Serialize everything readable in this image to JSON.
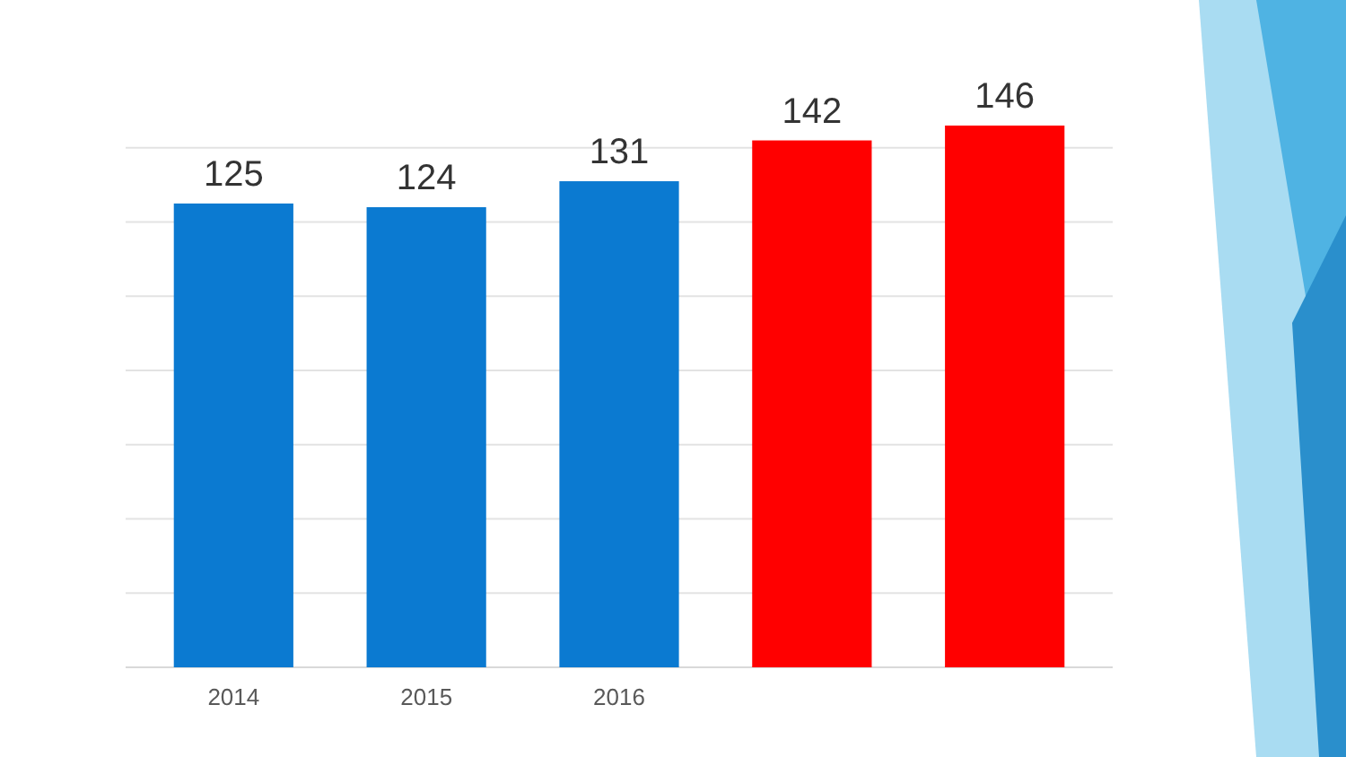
{
  "chart_data": {
    "type": "bar",
    "categories": [
      "2014",
      "2015",
      "2016",
      null,
      null
    ],
    "values": [
      125,
      124,
      131,
      142,
      146
    ],
    "colors": [
      "#0b7ad1",
      "#0b7ad1",
      "#0b7ad1",
      "#ff0000",
      "#ff0000"
    ],
    "data_labels": true,
    "grid": "y",
    "tick_labels": "x"
  }
}
